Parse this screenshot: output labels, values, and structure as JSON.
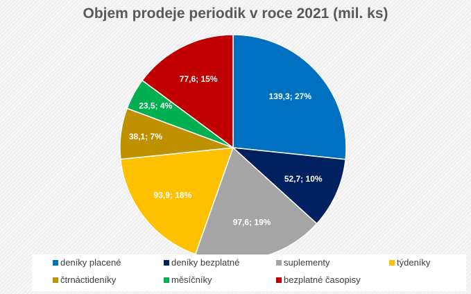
{
  "chart_data": {
    "type": "pie",
    "title": "Objem prodeje periodik v roce 2021 (mil. ks)",
    "start": "top, clockwise",
    "legend_position": "bottom",
    "slices": [
      {
        "name": "deníky placené",
        "value": 139.3,
        "label": "139,3; 27%",
        "color": "#0070c0"
      },
      {
        "name": "deníky bezplatné",
        "value": 52.7,
        "label": "52,7; 10%",
        "color": "#002060"
      },
      {
        "name": "suplementy",
        "value": 97.6,
        "label": "97,6; 19%",
        "color": "#a5a5a5"
      },
      {
        "name": "týdeníky",
        "value": 93.9,
        "label": "93,9; 18%",
        "color": "#ffc000"
      },
      {
        "name": "čtrnáctideníky",
        "value": 38.1,
        "label": "38,1; 7%",
        "color": "#bf9000"
      },
      {
        "name": "měsíčníky",
        "value": 23.5,
        "label": "23,5; 4%",
        "color": "#00b050"
      },
      {
        "name": "bezplatné časopisy",
        "value": 77.6,
        "label": "77,6; 15%",
        "color": "#c00000"
      }
    ]
  }
}
